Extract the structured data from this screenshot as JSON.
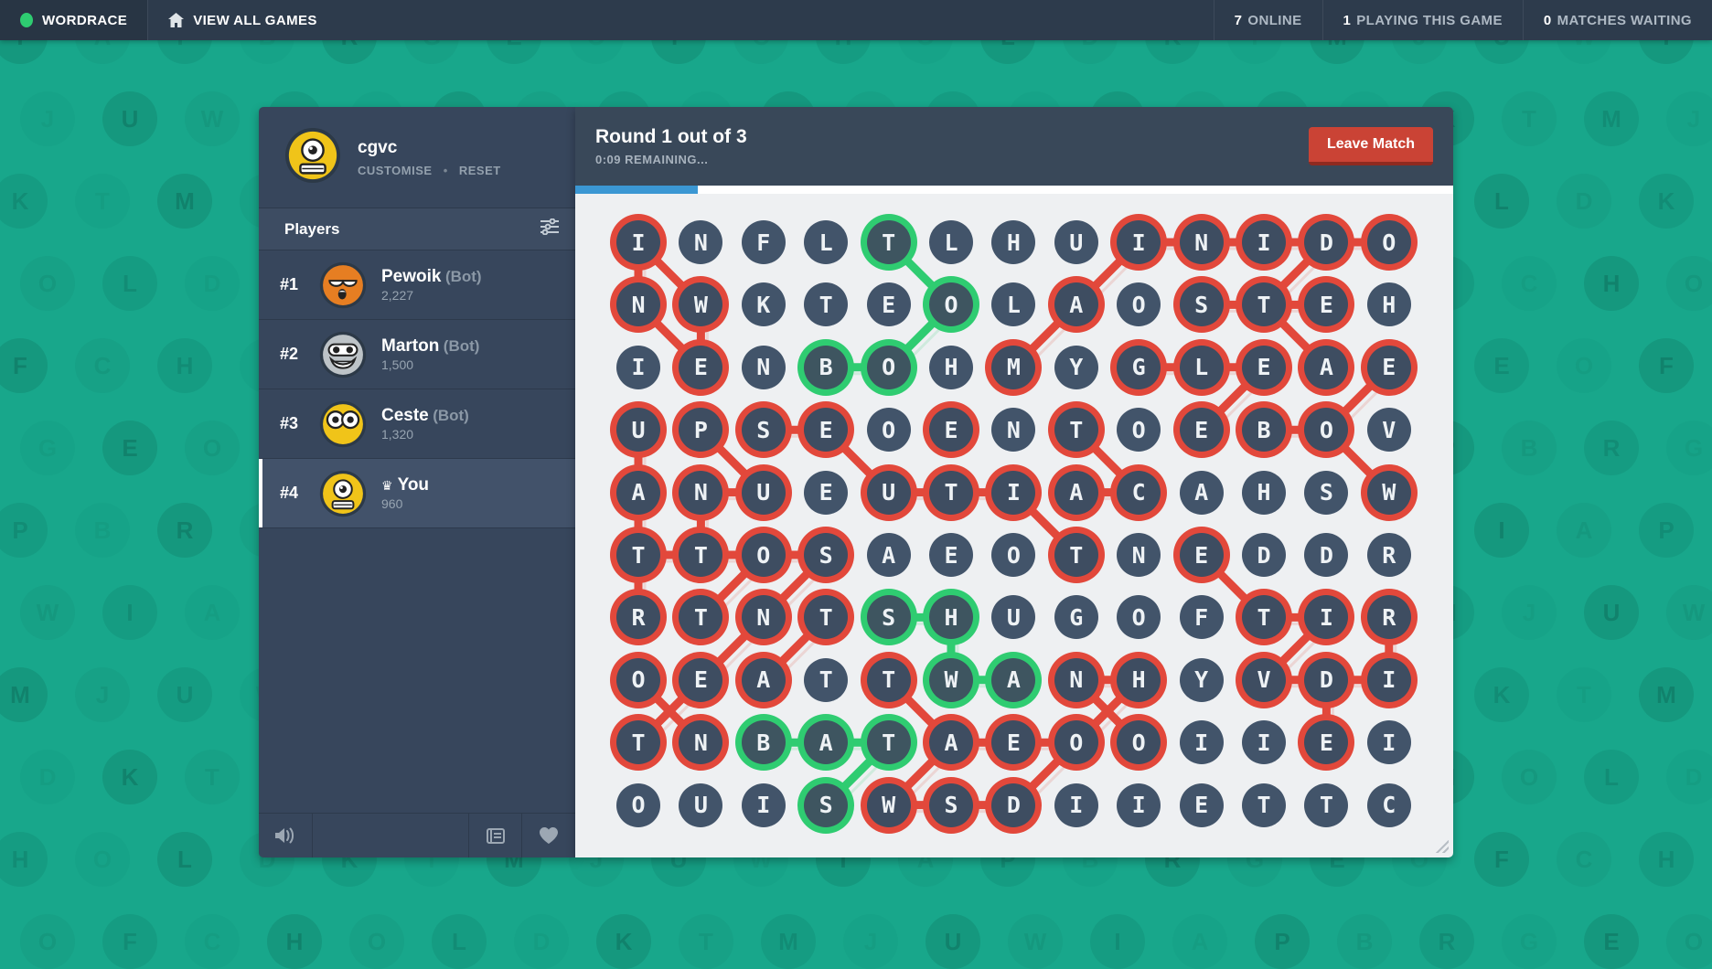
{
  "topbar": {
    "logo": "WORDRACE",
    "view_all": "VIEW ALL GAMES",
    "stats": [
      {
        "value": "7",
        "label": "ONLINE"
      },
      {
        "value": "1",
        "label": "PLAYING THIS GAME"
      },
      {
        "value": "0",
        "label": "MATCHES WAITING"
      }
    ]
  },
  "profile": {
    "name": "cgvc",
    "links": [
      "CUSTOMISE",
      "RESET"
    ],
    "avatar": "yellow-cyclops"
  },
  "players": {
    "header": "Players",
    "list": [
      {
        "rank": "#1",
        "name": "Pewoik",
        "suffix": "(Bot)",
        "score": "2,227",
        "avatar": "orange-sleepy",
        "crown": false,
        "highlight": false
      },
      {
        "rank": "#2",
        "name": "Marton",
        "suffix": "(Bot)",
        "score": "1,500",
        "avatar": "gray-grin",
        "crown": false,
        "highlight": false
      },
      {
        "rank": "#3",
        "name": "Ceste",
        "suffix": "(Bot)",
        "score": "1,320",
        "avatar": "yellow-eyes",
        "crown": false,
        "highlight": false
      },
      {
        "rank": "#4",
        "name": "You",
        "suffix": "",
        "score": "960",
        "avatar": "yellow-cyclops",
        "crown": true,
        "highlight": true
      }
    ]
  },
  "match": {
    "round_title": "Round 1 out of 3",
    "time_remaining": "0:09 REMAINING...",
    "leave_label": "Leave Match",
    "progress_percent": 14
  },
  "grid": {
    "rows": [
      "INFLTLHUINIDO",
      "NWKTEOLAOSTEH",
      "IENBOHMYGLEAE",
      "UPSEOENTOEBOV",
      "ANUEUTIACAHSW",
      "TTOSAEOTNEDDR",
      "RTNTSHUGOFTIR",
      "OEATTWANHYVDI",
      "TNBATAEOOIIEI",
      "OUISWSDIIETTC"
    ],
    "red_cells": [
      [
        1,
        1
      ],
      [
        1,
        9
      ],
      [
        1,
        10
      ],
      [
        1,
        11
      ],
      [
        1,
        12
      ],
      [
        1,
        13
      ],
      [
        2,
        1
      ],
      [
        2,
        2
      ],
      [
        2,
        8
      ],
      [
        2,
        10
      ],
      [
        2,
        11
      ],
      [
        2,
        12
      ],
      [
        3,
        2
      ],
      [
        3,
        7
      ],
      [
        3,
        9
      ],
      [
        3,
        10
      ],
      [
        3,
        11
      ],
      [
        3,
        12
      ],
      [
        3,
        13
      ],
      [
        4,
        1
      ],
      [
        4,
        2
      ],
      [
        4,
        3
      ],
      [
        4,
        4
      ],
      [
        4,
        6
      ],
      [
        4,
        8
      ],
      [
        4,
        10
      ],
      [
        4,
        11
      ],
      [
        4,
        12
      ],
      [
        5,
        1
      ],
      [
        5,
        2
      ],
      [
        5,
        3
      ],
      [
        5,
        5
      ],
      [
        5,
        6
      ],
      [
        5,
        7
      ],
      [
        5,
        8
      ],
      [
        5,
        9
      ],
      [
        5,
        13
      ],
      [
        6,
        1
      ],
      [
        6,
        2
      ],
      [
        6,
        3
      ],
      [
        6,
        4
      ],
      [
        6,
        8
      ],
      [
        6,
        10
      ],
      [
        7,
        1
      ],
      [
        7,
        2
      ],
      [
        7,
        3
      ],
      [
        7,
        4
      ],
      [
        7,
        11
      ],
      [
        7,
        12
      ],
      [
        7,
        13
      ],
      [
        8,
        1
      ],
      [
        8,
        2
      ],
      [
        8,
        3
      ],
      [
        8,
        5
      ],
      [
        8,
        8
      ],
      [
        8,
        9
      ],
      [
        8,
        11
      ],
      [
        8,
        12
      ],
      [
        8,
        13
      ],
      [
        9,
        1
      ],
      [
        9,
        2
      ],
      [
        9,
        6
      ],
      [
        9,
        7
      ],
      [
        9,
        8
      ],
      [
        9,
        9
      ],
      [
        9,
        12
      ],
      [
        10,
        5
      ],
      [
        10,
        6
      ],
      [
        10,
        7
      ]
    ],
    "green_cells": [
      [
        1,
        5
      ],
      [
        2,
        6
      ],
      [
        3,
        4
      ],
      [
        3,
        5
      ],
      [
        7,
        5
      ],
      [
        7,
        6
      ],
      [
        8,
        6
      ],
      [
        8,
        7
      ],
      [
        9,
        3
      ],
      [
        9,
        4
      ],
      [
        9,
        5
      ],
      [
        10,
        4
      ]
    ],
    "red_edges": [
      [
        1,
        1,
        2,
        1
      ],
      [
        1,
        1,
        2,
        2
      ],
      [
        2,
        1,
        3,
        2
      ],
      [
        2,
        2,
        3,
        2
      ],
      [
        4,
        1,
        5,
        1
      ],
      [
        5,
        1,
        6,
        1
      ],
      [
        6,
        1,
        7,
        1
      ],
      [
        6,
        1,
        6,
        2
      ],
      [
        5,
        2,
        6,
        2
      ],
      [
        5,
        2,
        5,
        3
      ],
      [
        4,
        2,
        5,
        3
      ],
      [
        4,
        3,
        4,
        4
      ],
      [
        4,
        4,
        5,
        5
      ],
      [
        5,
        5,
        5,
        6
      ],
      [
        5,
        6,
        5,
        7
      ],
      [
        6,
        2,
        6,
        3
      ],
      [
        6,
        3,
        6,
        4
      ],
      [
        6,
        3,
        7,
        2
      ],
      [
        6,
        4,
        7,
        3
      ],
      [
        7,
        3,
        8,
        2
      ],
      [
        7,
        4,
        8,
        3
      ],
      [
        8,
        1,
        9,
        2
      ],
      [
        8,
        2,
        9,
        1
      ],
      [
        8,
        5,
        9,
        6
      ],
      [
        9,
        6,
        9,
        7
      ],
      [
        9,
        6,
        10,
        5
      ],
      [
        10,
        5,
        10,
        6
      ],
      [
        10,
        6,
        10,
        7
      ],
      [
        10,
        7,
        9,
        8
      ],
      [
        9,
        7,
        9,
        8
      ],
      [
        8,
        8,
        9,
        9
      ],
      [
        8,
        9,
        9,
        8
      ],
      [
        8,
        8,
        8,
        9
      ],
      [
        1,
        9,
        1,
        10
      ],
      [
        1,
        10,
        1,
        11
      ],
      [
        1,
        11,
        1,
        12
      ],
      [
        1,
        12,
        1,
        13
      ],
      [
        1,
        9,
        2,
        8
      ],
      [
        2,
        8,
        3,
        7
      ],
      [
        2,
        10,
        2,
        11
      ],
      [
        2,
        11,
        2,
        12
      ],
      [
        1,
        12,
        2,
        11
      ],
      [
        2,
        11,
        3,
        12
      ],
      [
        3,
        9,
        3,
        10
      ],
      [
        3,
        10,
        3,
        11
      ],
      [
        3,
        11,
        4,
        10
      ],
      [
        3,
        13,
        4,
        12
      ],
      [
        4,
        11,
        4,
        12
      ],
      [
        4,
        12,
        5,
        13
      ],
      [
        4,
        8,
        5,
        9
      ],
      [
        5,
        8,
        5,
        9
      ],
      [
        5,
        7,
        6,
        8
      ],
      [
        6,
        10,
        7,
        11
      ],
      [
        7,
        11,
        7,
        12
      ],
      [
        7,
        12,
        8,
        11
      ],
      [
        8,
        11,
        8,
        12
      ],
      [
        8,
        12,
        8,
        13
      ],
      [
        8,
        12,
        9,
        12
      ],
      [
        7,
        13,
        8,
        13
      ]
    ],
    "green_edges": [
      [
        1,
        5,
        2,
        6
      ],
      [
        2,
        6,
        3,
        5
      ],
      [
        3,
        4,
        3,
        5
      ],
      [
        7,
        5,
        7,
        6
      ],
      [
        7,
        6,
        8,
        6
      ],
      [
        8,
        6,
        8,
        7
      ],
      [
        9,
        3,
        9,
        4
      ],
      [
        9,
        4,
        9,
        5
      ],
      [
        9,
        5,
        10,
        4
      ]
    ]
  },
  "background": {
    "letters": "IOPDRTEJFWHALBKGMOUC"
  },
  "colors": {
    "red": "#e2483b",
    "green": "#2fcc71",
    "teal_bg": "#18a78b",
    "teal_circle": "#12947c",
    "progress_blue": "#3b97d3",
    "cell_fill": "#42546a"
  }
}
